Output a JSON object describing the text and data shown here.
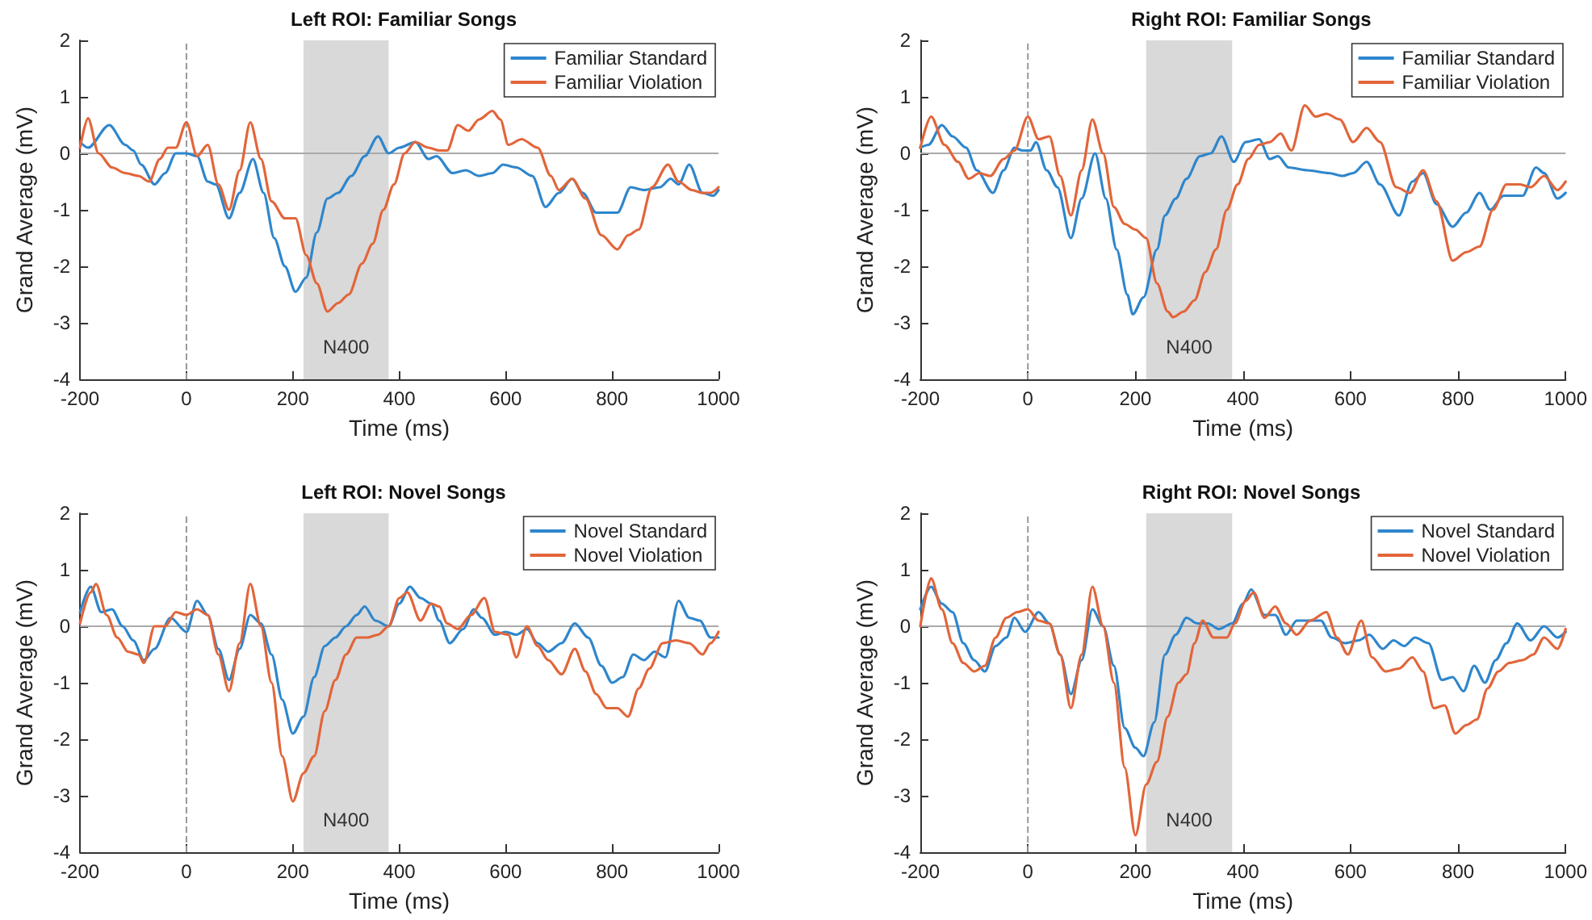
{
  "chart_data": [
    {
      "type": "line",
      "title": "Left ROI: Familiar Songs",
      "xlabel": "Time (ms)",
      "ylabel": "Grand Average (mV)",
      "xlim": [
        -200,
        1000
      ],
      "xticks": [
        -200,
        0,
        200,
        400,
        600,
        800,
        1000
      ],
      "ylim": [
        -4,
        2
      ],
      "yticks": [
        -4,
        -3,
        -2,
        -1,
        0,
        1,
        2
      ],
      "legend": "top right",
      "marker": "none",
      "line_style": "solid",
      "grid": false,
      "ref_lines": [
        {
          "axis": "x",
          "value": 0,
          "color": "#999999",
          "line_style": "dashed"
        },
        {
          "axis": "y",
          "value": 0,
          "color": "#aaaaaa",
          "line_style": "solid"
        }
      ],
      "bands": [
        {
          "axis": "x",
          "from": 220,
          "to": 380,
          "label": "N400",
          "color": "#d9d9d9"
        }
      ],
      "series": [
        {
          "name": "Familiar Standard",
          "color": "#2e86cc",
          "x": [
            -200,
            -185,
            -145,
            -115,
            -100,
            -85,
            -60,
            -40,
            -20,
            0,
            20,
            40,
            55,
            80,
            100,
            125,
            145,
            165,
            185,
            205,
            225,
            245,
            265,
            285,
            310,
            335,
            360,
            380,
            400,
            430,
            455,
            470,
            500,
            525,
            550,
            575,
            595,
            620,
            650,
            675,
            700,
            725,
            745,
            770,
            790,
            810,
            835,
            860,
            890,
            910,
            925,
            945,
            970,
            990,
            1000
          ],
          "values": [
            0.2,
            0.1,
            0.5,
            0.15,
            0.05,
            -0.2,
            -0.55,
            -0.35,
            0,
            0,
            -0.05,
            -0.5,
            -0.55,
            -1.15,
            -0.7,
            -0.1,
            -0.7,
            -1.5,
            -2,
            -2.45,
            -2.2,
            -1.4,
            -0.8,
            -0.7,
            -0.4,
            -0.05,
            0.3,
            0,
            0.1,
            0.2,
            -0.1,
            -0.05,
            -0.35,
            -0.3,
            -0.4,
            -0.35,
            -0.2,
            -0.25,
            -0.4,
            -0.95,
            -0.7,
            -0.45,
            -0.7,
            -1.05,
            -1.05,
            -1.05,
            -0.6,
            -0.65,
            -0.6,
            -0.45,
            -0.55,
            -0.2,
            -0.7,
            -0.75,
            -0.65
          ]
        },
        {
          "name": "Familiar Violation",
          "color": "#e2653a",
          "x": [
            -200,
            -185,
            -165,
            -140,
            -115,
            -90,
            -70,
            -50,
            -35,
            -20,
            0,
            20,
            40,
            60,
            80,
            100,
            120,
            140,
            160,
            185,
            205,
            225,
            245,
            265,
            285,
            305,
            330,
            350,
            370,
            390,
            410,
            430,
            455,
            475,
            490,
            510,
            530,
            550,
            575,
            590,
            605,
            630,
            660,
            685,
            700,
            725,
            750,
            780,
            810,
            830,
            850,
            875,
            905,
            925,
            950,
            970,
            985,
            1000
          ],
          "values": [
            0.1,
            0.62,
            0,
            -0.25,
            -0.35,
            -0.4,
            -0.5,
            -0.1,
            0.1,
            0.1,
            0.55,
            -0.05,
            0.15,
            -0.55,
            -1,
            -0.3,
            0.55,
            -0.1,
            -0.85,
            -1.15,
            -1.15,
            -1.8,
            -2.3,
            -2.8,
            -2.65,
            -2.5,
            -1.95,
            -1.6,
            -1,
            -0.55,
            0,
            0.2,
            0.1,
            0.05,
            0.05,
            0.5,
            0.4,
            0.6,
            0.75,
            0.6,
            0.15,
            0.25,
            0.1,
            -0.4,
            -0.65,
            -0.45,
            -0.8,
            -1.45,
            -1.7,
            -1.45,
            -1.35,
            -0.6,
            -0.2,
            -0.5,
            -0.65,
            -0.7,
            -0.7,
            -0.6
          ]
        }
      ]
    },
    {
      "type": "line",
      "title": "Right ROI: Familiar Songs",
      "xlabel": "Time (ms)",
      "ylabel": "Grand Average (mV)",
      "xlim": [
        -200,
        1000
      ],
      "xticks": [
        -200,
        0,
        200,
        400,
        600,
        800,
        1000
      ],
      "ylim": [
        -4,
        2
      ],
      "yticks": [
        -4,
        -3,
        -2,
        -1,
        0,
        1,
        2
      ],
      "legend": "top right",
      "marker": "none",
      "line_style": "solid",
      "grid": false,
      "ref_lines": [
        {
          "axis": "x",
          "value": 0,
          "color": "#999999",
          "line_style": "dashed"
        },
        {
          "axis": "y",
          "value": 0,
          "color": "#aaaaaa",
          "line_style": "solid"
        }
      ],
      "bands": [
        {
          "axis": "x",
          "from": 220,
          "to": 380,
          "label": "N400",
          "color": "#d9d9d9"
        }
      ],
      "series": [
        {
          "name": "Familiar Standard",
          "color": "#2e86cc",
          "x": [
            -200,
            -185,
            -160,
            -140,
            -115,
            -95,
            -65,
            -45,
            -25,
            -10,
            5,
            15,
            35,
            55,
            80,
            100,
            125,
            145,
            165,
            185,
            195,
            215,
            240,
            255,
            275,
            295,
            320,
            340,
            360,
            383,
            405,
            430,
            450,
            465,
            485,
            520,
            560,
            585,
            605,
            630,
            655,
            690,
            715,
            735,
            760,
            790,
            815,
            840,
            860,
            885,
            920,
            945,
            960,
            985,
            1000
          ],
          "values": [
            0.1,
            0.15,
            0.5,
            0.3,
            0.1,
            -0.3,
            -0.7,
            -0.3,
            0.1,
            0.05,
            0.05,
            0.2,
            -0.3,
            -0.6,
            -1.5,
            -0.8,
            0,
            -0.8,
            -1.7,
            -2.5,
            -2.85,
            -2.55,
            -1.7,
            -1.1,
            -0.8,
            -0.45,
            -0.05,
            0,
            0.3,
            -0.15,
            0.2,
            0.25,
            -0.1,
            -0.05,
            -0.25,
            -0.3,
            -0.35,
            -0.4,
            -0.35,
            -0.15,
            -0.55,
            -1.1,
            -0.5,
            -0.35,
            -0.9,
            -1.3,
            -1.05,
            -0.7,
            -1,
            -0.75,
            -0.75,
            -0.25,
            -0.35,
            -0.8,
            -0.7
          ]
        },
        {
          "name": "Familiar Violation",
          "color": "#e2653a",
          "x": [
            -200,
            -180,
            -155,
            -130,
            -110,
            -90,
            -70,
            -45,
            -25,
            0,
            20,
            40,
            60,
            80,
            100,
            120,
            140,
            160,
            180,
            200,
            220,
            240,
            260,
            270,
            290,
            310,
            330,
            350,
            370,
            390,
            410,
            430,
            450,
            470,
            490,
            515,
            535,
            555,
            580,
            605,
            630,
            655,
            685,
            710,
            735,
            760,
            790,
            815,
            840,
            865,
            890,
            915,
            935,
            960,
            985,
            1000
          ],
          "values": [
            0.1,
            0.65,
            0.15,
            -0.15,
            -0.45,
            -0.35,
            -0.4,
            -0.1,
            0.05,
            0.65,
            0.25,
            0.3,
            -0.4,
            -1.1,
            -0.3,
            0.6,
            0,
            -0.95,
            -1.25,
            -1.35,
            -1.5,
            -2.3,
            -2.8,
            -2.9,
            -2.8,
            -2.6,
            -2.1,
            -1.7,
            -1,
            -0.55,
            -0.1,
            0.15,
            0.2,
            0.35,
            0.05,
            0.85,
            0.65,
            0.7,
            0.6,
            0.2,
            0.45,
            0.2,
            -0.6,
            -0.7,
            -0.3,
            -0.85,
            -1.9,
            -1.75,
            -1.65,
            -1,
            -0.55,
            -0.55,
            -0.6,
            -0.4,
            -0.65,
            -0.5
          ]
        }
      ]
    },
    {
      "type": "line",
      "title": "Left ROI: Novel Songs",
      "xlabel": "Time (ms)",
      "ylabel": "Grand Average (mV)",
      "xlim": [
        -200,
        1000
      ],
      "xticks": [
        -200,
        0,
        200,
        400,
        600,
        800,
        1000
      ],
      "ylim": [
        -4,
        2
      ],
      "yticks": [
        -4,
        -3,
        -2,
        -1,
        0,
        1,
        2
      ],
      "legend": "top right",
      "marker": "none",
      "line_style": "solid",
      "grid": false,
      "ref_lines": [
        {
          "axis": "x",
          "value": 0,
          "color": "#999999",
          "line_style": "dashed"
        },
        {
          "axis": "y",
          "value": 0,
          "color": "#aaaaaa",
          "line_style": "solid"
        }
      ],
      "bands": [
        {
          "axis": "x",
          "from": 220,
          "to": 380,
          "label": "N400",
          "color": "#d9d9d9"
        }
      ],
      "series": [
        {
          "name": "Novel Standard",
          "color": "#2e86cc",
          "x": [
            -200,
            -180,
            -160,
            -140,
            -120,
            -100,
            -80,
            -60,
            -30,
            0,
            20,
            40,
            60,
            80,
            100,
            120,
            140,
            160,
            180,
            200,
            220,
            240,
            260,
            280,
            300,
            320,
            335,
            355,
            380,
            400,
            420,
            440,
            460,
            475,
            495,
            520,
            540,
            555,
            580,
            600,
            620,
            640,
            660,
            680,
            705,
            730,
            755,
            780,
            800,
            820,
            840,
            860,
            880,
            900,
            925,
            945,
            965,
            985,
            1000
          ],
          "values": [
            0.25,
            0.7,
            0.25,
            0.3,
            0,
            -0.25,
            -0.6,
            -0.4,
            0.15,
            -0.1,
            0.45,
            0.2,
            -0.4,
            -0.95,
            -0.4,
            0.2,
            0.05,
            -0.5,
            -1.3,
            -1.9,
            -1.6,
            -0.9,
            -0.35,
            -0.2,
            0,
            0.2,
            0.35,
            0.1,
            0,
            0.4,
            0.7,
            0.5,
            0.4,
            0.1,
            -0.3,
            -0.05,
            0.3,
            0.15,
            -0.15,
            -0.1,
            -0.15,
            -0.05,
            -0.3,
            -0.45,
            -0.3,
            0.05,
            -0.2,
            -0.7,
            -1,
            -0.9,
            -0.5,
            -0.6,
            -0.45,
            -0.55,
            0.45,
            0.15,
            0.1,
            -0.2,
            -0.2
          ]
        },
        {
          "name": "Novel Violation",
          "color": "#e2653a",
          "x": [
            -200,
            -180,
            -170,
            -150,
            -130,
            -110,
            -90,
            -80,
            -60,
            -40,
            -20,
            0,
            20,
            40,
            60,
            80,
            100,
            120,
            140,
            160,
            180,
            200,
            220,
            240,
            260,
            280,
            300,
            320,
            340,
            360,
            380,
            400,
            415,
            440,
            460,
            475,
            490,
            510,
            535,
            560,
            580,
            605,
            620,
            640,
            660,
            680,
            705,
            730,
            750,
            770,
            790,
            810,
            830,
            850,
            870,
            895,
            920,
            945,
            970,
            985,
            1000
          ],
          "values": [
            0.05,
            0.6,
            0.75,
            0.2,
            -0.2,
            -0.45,
            -0.5,
            -0.65,
            0,
            0,
            0.25,
            0.2,
            0.3,
            0.2,
            -0.5,
            -1.15,
            -0.3,
            0.75,
            0,
            -1,
            -2.3,
            -3.1,
            -2.6,
            -2.3,
            -1.5,
            -0.95,
            -0.5,
            -0.2,
            -0.2,
            -0.15,
            0,
            0.5,
            0.6,
            0.1,
            0.4,
            0.35,
            0.05,
            -0.05,
            0.2,
            0.5,
            -0.1,
            -0.15,
            -0.55,
            0,
            -0.35,
            -0.6,
            -0.85,
            -0.4,
            -0.8,
            -1.2,
            -1.45,
            -1.45,
            -1.6,
            -1.1,
            -0.75,
            -0.3,
            -0.25,
            -0.3,
            -0.5,
            -0.3,
            -0.1
          ]
        }
      ]
    },
    {
      "type": "line",
      "title": "Right ROI: Novel Songs",
      "xlabel": "Time (ms)",
      "ylabel": "Grand Average (mV)",
      "xlim": [
        -200,
        1000
      ],
      "xticks": [
        -200,
        0,
        200,
        400,
        600,
        800,
        1000
      ],
      "ylim": [
        -4,
        2
      ],
      "yticks": [
        -4,
        -3,
        -2,
        -1,
        0,
        1,
        2
      ],
      "legend": "top right",
      "marker": "none",
      "line_style": "solid",
      "grid": false,
      "ref_lines": [
        {
          "axis": "x",
          "value": 0,
          "color": "#999999",
          "line_style": "dashed"
        },
        {
          "axis": "y",
          "value": 0,
          "color": "#aaaaaa",
          "line_style": "solid"
        }
      ],
      "bands": [
        {
          "axis": "x",
          "from": 220,
          "to": 380,
          "label": "N400",
          "color": "#d9d9d9"
        }
      ],
      "series": [
        {
          "name": "Novel Standard",
          "color": "#2e86cc",
          "x": [
            -200,
            -180,
            -160,
            -140,
            -120,
            -100,
            -80,
            -60,
            -40,
            -25,
            -5,
            20,
            40,
            60,
            80,
            100,
            120,
            140,
            160,
            180,
            200,
            215,
            235,
            255,
            275,
            295,
            315,
            335,
            355,
            380,
            400,
            415,
            440,
            460,
            480,
            500,
            520,
            545,
            565,
            590,
            615,
            635,
            660,
            680,
            700,
            720,
            745,
            770,
            790,
            810,
            830,
            850,
            870,
            890,
            910,
            935,
            960,
            985,
            1000
          ],
          "values": [
            0.3,
            0.7,
            0.4,
            0.25,
            -0.3,
            -0.6,
            -0.8,
            -0.35,
            -0.2,
            0.15,
            -0.1,
            0.25,
            0.05,
            -0.5,
            -1.2,
            -0.6,
            0.3,
            0,
            -0.7,
            -1.8,
            -2.15,
            -2.3,
            -1.7,
            -0.5,
            -0.15,
            0.15,
            0.05,
            0.05,
            -0.05,
            0.05,
            0.4,
            0.65,
            0.2,
            0.2,
            -0.15,
            0.1,
            0.1,
            0.1,
            -0.2,
            -0.3,
            -0.25,
            -0.15,
            -0.4,
            -0.25,
            -0.35,
            -0.2,
            -0.3,
            -0.95,
            -0.9,
            -1.15,
            -0.7,
            -1,
            -0.6,
            -0.3,
            0.05,
            -0.25,
            0,
            -0.2,
            -0.1
          ]
        },
        {
          "name": "Novel Violation",
          "color": "#e2653a",
          "x": [
            -200,
            -180,
            -160,
            -140,
            -120,
            -100,
            -80,
            -60,
            -40,
            -20,
            0,
            20,
            40,
            60,
            80,
            100,
            120,
            140,
            160,
            180,
            200,
            220,
            240,
            260,
            280,
            295,
            310,
            325,
            345,
            370,
            385,
            405,
            420,
            440,
            460,
            480,
            500,
            525,
            555,
            575,
            595,
            620,
            640,
            665,
            690,
            715,
            735,
            755,
            775,
            795,
            815,
            835,
            855,
            875,
            895,
            920,
            940,
            960,
            985,
            1000
          ],
          "values": [
            0,
            0.85,
            0.3,
            -0.3,
            -0.65,
            -0.8,
            -0.7,
            -0.2,
            0.15,
            0.25,
            0.3,
            0.1,
            0.05,
            -0.5,
            -1.45,
            -0.5,
            0.7,
            0,
            -1,
            -2.5,
            -3.7,
            -2.8,
            -2.4,
            -1.6,
            -1,
            -0.85,
            -0.3,
            0.1,
            -0.2,
            -0.2,
            0.05,
            0.45,
            0.6,
            0.15,
            0.35,
            0.05,
            -0.15,
            0.1,
            0.25,
            -0.2,
            -0.5,
            0.1,
            -0.55,
            -0.8,
            -0.75,
            -0.55,
            -0.8,
            -1.45,
            -1.4,
            -1.9,
            -1.75,
            -1.65,
            -1.1,
            -0.8,
            -0.65,
            -0.6,
            -0.5,
            -0.2,
            -0.4,
            -0.05
          ]
        }
      ]
    }
  ]
}
